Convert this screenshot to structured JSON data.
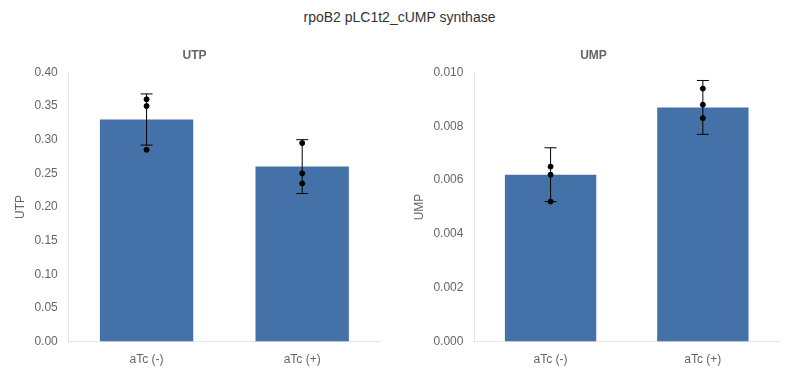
{
  "chart_data": [
    {
      "type": "bar",
      "title": "UTP",
      "subtitle": "rpoB2 pLC1t2_cUMP synthase",
      "categories": [
        "aTc (-)",
        "aTc (+)"
      ],
      "values": [
        0.33,
        0.26
      ],
      "errors": [
        0.038,
        0.04
      ],
      "points": [
        [
          0.285,
          0.35,
          0.36
        ],
        [
          0.235,
          0.25,
          0.295
        ]
      ],
      "color": "#4472a8",
      "ylabel": "UTP",
      "ylim": [
        0,
        0.4
      ],
      "yticks": [
        {
          "value": 0,
          "label": "0.00"
        },
        0.05,
        {
          "value": 0.1,
          "label": "0.10"
        },
        0.15,
        {
          "value": 0.2,
          "label": "0.20"
        },
        0.25,
        {
          "value": 0.3,
          "label": "0.30"
        },
        0.35,
        {
          "value": 0.4,
          "label": "0.40"
        }
      ],
      "grid": false
    },
    {
      "type": "bar",
      "title": "UMP",
      "categories": [
        "aTc (-)",
        "aTc (+)"
      ],
      "values": [
        0.0062,
        0.0087
      ],
      "errors": [
        0.001,
        0.001
      ],
      "points": [
        [
          0.0052,
          0.0062,
          0.0065
        ],
        [
          0.0083,
          0.0088,
          0.0094
        ]
      ],
      "color": "#4472a8",
      "ylabel": "UMP",
      "ylim": [
        0,
        0.01
      ],
      "yticks": [
        {
          "value": 0,
          "label": "0.000"
        },
        0.002,
        0.004,
        0.006,
        0.008,
        {
          "value": 0.01,
          "label": "0.010"
        }
      ],
      "grid": false
    }
  ]
}
